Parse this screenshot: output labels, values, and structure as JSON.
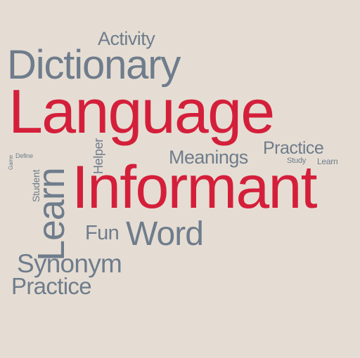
{
  "colors": {
    "background": "#e5ddd3",
    "gray": "#6f7c8c",
    "red": "#d41f3b"
  },
  "words": {
    "activity": "Activity",
    "dictionary": "Dictionary",
    "language": "Language",
    "learn_big": "Learn",
    "informant": "Informant",
    "meanings": "Meanings",
    "practice_small": "Practice",
    "study": "Study",
    "learn_small": "Learn",
    "helper": "Helper",
    "student": "Student",
    "define": "Define",
    "game": "Game",
    "fun": "Fun",
    "word": "Word",
    "synonym": "Synonym",
    "practice_large": "Practice"
  }
}
